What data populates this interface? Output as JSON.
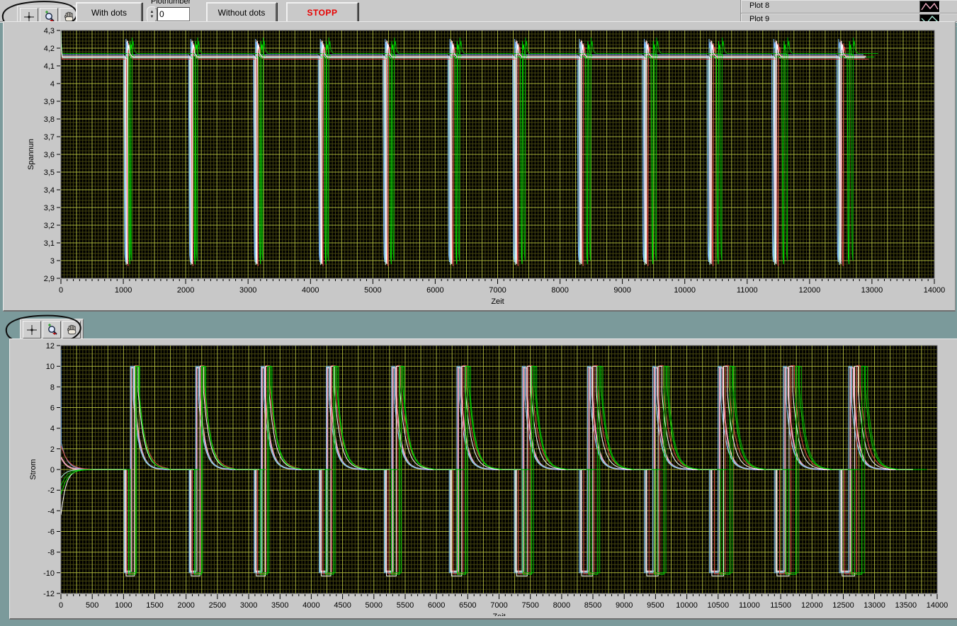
{
  "toolbar": {
    "with_dots_label": "With dots",
    "plotnumber_label": "Plotnumber",
    "plotnumber_value": "0",
    "without_dots_label": "Without dots",
    "stop_label": "STOPP",
    "stop_color": "#e80000",
    "palette_tools": [
      "crosshair-tool",
      "zoom-tool",
      "pan-tool"
    ]
  },
  "legend": {
    "items": [
      {
        "label": "Plot 8",
        "color": "#f0a9c0"
      },
      {
        "label": "Plot 9",
        "color": "#a8eed9"
      }
    ]
  },
  "chart_data": [
    {
      "type": "line",
      "title": "",
      "xlabel": "Zeit",
      "ylabel": "Spannun",
      "xlim": [
        0,
        14000
      ],
      "ylim": [
        2.9,
        4.3
      ],
      "x_major_tick_step": 1000,
      "x_minor_tick_step": 100,
      "xtick_labels": [
        "0",
        "1000",
        "2000",
        "3000",
        "4000",
        "5000",
        "6000",
        "7000",
        "8000",
        "9000",
        "10000",
        "11000",
        "12000",
        "13000",
        "14000"
      ],
      "yticks": [
        4.3,
        4.2,
        4.1,
        4.0,
        3.9,
        3.8,
        3.7,
        3.6,
        3.5,
        3.4,
        3.3,
        3.2,
        3.1,
        3.0,
        2.9
      ],
      "ytick_labels": [
        "4,3",
        "4,2",
        "4,1",
        "4",
        "3,9",
        "3,8",
        "3,7",
        "3,6",
        "3,5",
        "3,4",
        "3,3",
        "3,2",
        "3,1",
        "3",
        "2,9"
      ],
      "grid": {
        "bg": "#000000",
        "minor": "#45450f",
        "major": "#a9b23a",
        "x_minor": 50,
        "x_major": 250,
        "y_minor": 0.02,
        "y_major": 0.1
      },
      "pattern": {
        "description": "Cell voltages: rest ~4.15 V with steep discharge dip to ~3.0 V once per cycle, recovery overshoot to ~4.24 V",
        "rest": 4.15,
        "dip_min": 2.98,
        "peak": 4.24,
        "cycle_period": 1040,
        "cycles": 12
      },
      "series": [
        {
          "name": "pink",
          "color": "#f0a9c0",
          "offset": -10,
          "offset_growth": 0,
          "dv": 0.005
        },
        {
          "name": "cyan",
          "color": "#a8eed9",
          "offset": -18,
          "offset_growth": -0.5,
          "dv": -0.005
        },
        {
          "name": "light-blue",
          "color": "#7cb6f2",
          "offset": -27,
          "offset_growth": -1.5,
          "dv": 0.012
        },
        {
          "name": "red",
          "color": "#e04848",
          "offset": 10,
          "offset_growth": 2,
          "dv": -0.012
        },
        {
          "name": "green-2",
          "color": "#00b400",
          "offset": 58,
          "offset_growth": 11,
          "dv": 0.02
        },
        {
          "name": "green",
          "color": "#00e000",
          "offset": 32,
          "offset_growth": 8,
          "dv": 0
        },
        {
          "name": "white",
          "color": "#ffffff",
          "offset": 0,
          "offset_growth": 0,
          "dv": 0
        }
      ]
    },
    {
      "type": "line",
      "title": "",
      "xlabel": "Zeit",
      "ylabel": "Strom",
      "xlim": [
        0,
        14000
      ],
      "ylim": [
        -12,
        12
      ],
      "x_major_tick_step": 500,
      "x_minor_tick_step": 100,
      "xtick_labels": [
        "0",
        "500",
        "1000",
        "1500",
        "2000",
        "2500",
        "3000",
        "3500",
        "4000",
        "4500",
        "5000",
        "5500",
        "6000",
        "6500",
        "7000",
        "7500",
        "8000",
        "8500",
        "9000",
        "9500",
        "10000",
        "10500",
        "11000",
        "11500",
        "12000",
        "12500",
        "13000",
        "13500",
        "14000"
      ],
      "yticks": [
        12,
        10,
        8,
        6,
        4,
        2,
        0,
        -2,
        -4,
        -6,
        -8,
        -10,
        -12
      ],
      "ytick_labels": [
        "12",
        "10",
        "8",
        "6",
        "4",
        "2",
        "0",
        "-2",
        "-4",
        "-6",
        "-8",
        "-10",
        "-12"
      ],
      "grid": {
        "bg": "#000000",
        "minor": "#45450f",
        "major": "#a9b23a",
        "x_minor": 50,
        "x_major": 250,
        "y_minor": 0.4,
        "y_major": 2
      },
      "pattern": {
        "description": "Currents: per cycle a -10 A discharge pulse, brief +10 A spike, then exponential relaxation to 0 A",
        "high": 10,
        "low": -10,
        "cycle_period": 1040,
        "cycles": 12
      },
      "series": [
        {
          "name": "pink",
          "color": "#f0a9c0",
          "offset": -14,
          "offset_growth": 0.5,
          "neg_width": 95,
          "neg_width_growth": 4,
          "pos_width": 50,
          "relax_peak": 7.2,
          "tau": 85,
          "low": -9.85,
          "high": 9.85,
          "init_y": 1.2,
          "init_tau": 80,
          "stroke": 2
        },
        {
          "name": "cyan",
          "color": "#a8eed9",
          "offset": -22,
          "offset_growth": 0,
          "neg_width": 90,
          "neg_width_growth": 3,
          "pos_width": 45,
          "relax_peak": 6.8,
          "tau": 90,
          "low": -9.9,
          "high": 9.9,
          "init_y": -0.8,
          "init_tau": 80,
          "stroke": 1
        },
        {
          "name": "light-blue",
          "color": "#7cb6f2",
          "offset": -30,
          "offset_growth": -1,
          "neg_width": 100,
          "neg_width_growth": 4,
          "pos_width": 48,
          "relax_peak": 6.5,
          "tau": 95,
          "low": -10,
          "high": 10,
          "init_y": 2.6,
          "init_top": 11.6,
          "init_tau": 90,
          "stroke": 1
        },
        {
          "name": "red",
          "color": "#e04848",
          "offset": 14,
          "offset_growth": 2.5,
          "neg_width": 118,
          "neg_width_growth": 6,
          "pos_width": 55,
          "relax_peak": 8.2,
          "tau": 110,
          "low": -10.1,
          "high": 10.05,
          "init_y": 2.3,
          "init_tau": 110,
          "stroke": 1
        },
        {
          "name": "white",
          "color": "#ffffff",
          "offset": 0,
          "offset_growth": 0,
          "neg_width": 128,
          "neg_width_growth": 6,
          "pos_width": 58,
          "relax_peak": 7.6,
          "tau": 100,
          "low": -10.3,
          "high": 10,
          "init_y": -4.4,
          "init_tau": 75,
          "stroke": 1
        },
        {
          "name": "green-2",
          "color": "#00b400",
          "offset": 58,
          "offset_growth": 12,
          "neg_width": 95,
          "neg_width_growth": 5,
          "pos_width": 50,
          "relax_peak": 7.0,
          "tau": 95,
          "low": -10,
          "high": 9.95,
          "init_y": -1.6,
          "init_tau": 85,
          "stroke": 1
        },
        {
          "name": "green",
          "color": "#00e000",
          "offset": 32,
          "offset_growth": 10,
          "neg_width": 105,
          "neg_width_growth": 5,
          "pos_width": 52,
          "relax_peak": 8.0,
          "tau": 95,
          "low": -10.15,
          "high": 10,
          "init_y": -2.4,
          "init_tau": 95,
          "stroke": 1
        }
      ]
    }
  ]
}
